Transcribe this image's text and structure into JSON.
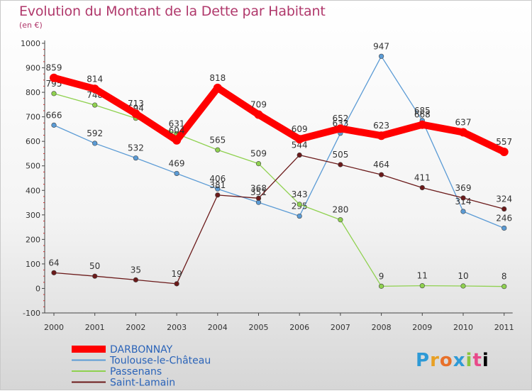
{
  "title": "Evolution du Montant de la Dette par Habitant",
  "subtitle": "(en €)",
  "logo": "Proxiti",
  "chart_data": {
    "type": "line",
    "title": "Evolution du Montant de la Dette par Habitant",
    "subtitle": "(en €)",
    "ylim": [
      -100,
      1000
    ],
    "yticks": [
      -100,
      0,
      100,
      200,
      300,
      400,
      500,
      600,
      700,
      800,
      900,
      1000
    ],
    "categories": [
      "2000",
      "2001",
      "2002",
      "2003",
      "2004",
      "2005",
      "2006",
      "2007",
      "2008",
      "2009",
      "2010",
      "2011"
    ],
    "grid": false,
    "legend_position": "bottom-left",
    "series": [
      {
        "name": "DARBONNAY",
        "color": "#ff0000",
        "values": [
          859,
          814,
          713,
          604,
          818,
          709,
          609,
          652,
          623,
          668,
          637,
          557
        ]
      },
      {
        "name": "Toulouse-le-Château",
        "color": "#5b9bd5",
        "values": [
          666,
          592,
          532,
          469,
          406,
          351,
          295,
          633,
          947,
          685,
          314,
          246
        ]
      },
      {
        "name": "Passenans",
        "color": "#8fd14f",
        "values": [
          795,
          748,
          694,
          631,
          565,
          509,
          343,
          280,
          9,
          11,
          10,
          8
        ]
      },
      {
        "name": "Saint-Lamain",
        "color": "#6b1a1a",
        "values": [
          64,
          50,
          35,
          19,
          381,
          368,
          544,
          505,
          464,
          411,
          369,
          324
        ]
      }
    ]
  }
}
